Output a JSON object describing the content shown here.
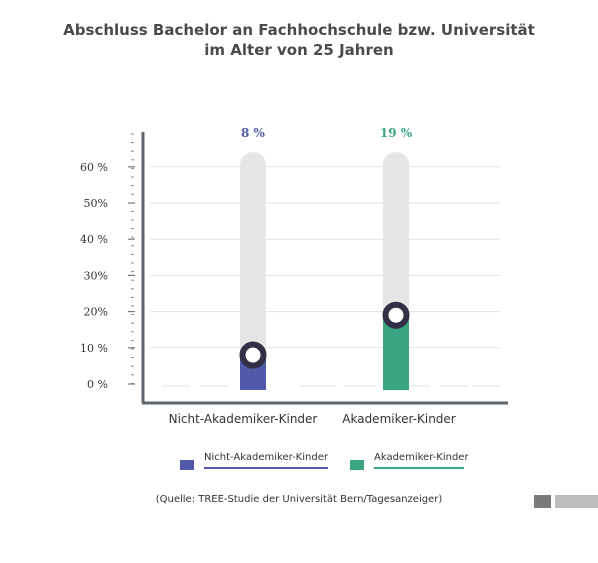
{
  "chart_data": {
    "type": "bar",
    "title_lines": [
      "Abschluss Bachelor an Fachhochschule bzw. Universität",
      "im Alter von 25 Jahren"
    ],
    "categories": [
      "Nicht-Akademiker-Kinder",
      "Akademiker-Kinder"
    ],
    "values": [
      8,
      19
    ],
    "value_labels": [
      "8 %",
      "19 %"
    ],
    "y_ticks": [
      {
        "value": 0,
        "label": "0 %"
      },
      {
        "value": 10,
        "label": "10 %"
      },
      {
        "value": 20,
        "label": "20%"
      },
      {
        "value": 30,
        "label": "30%"
      },
      {
        "value": 40,
        "label": "40 %"
      },
      {
        "value": 50,
        "label": "50%"
      },
      {
        "value": 60,
        "label": "60 %"
      }
    ],
    "ylim": [
      0,
      60
    ],
    "colors": [
      "#5159a8",
      "#3aa583"
    ],
    "track_color": "#e6e6e6",
    "legend": [
      "Nicht-Akademiker-Kinder",
      "Akademiker-Kinder"
    ],
    "legend_placement": "bottom",
    "grid": true
  },
  "source": "(Quelle: TREE-Studie der Universität Bern/Tagesanzeiger)"
}
